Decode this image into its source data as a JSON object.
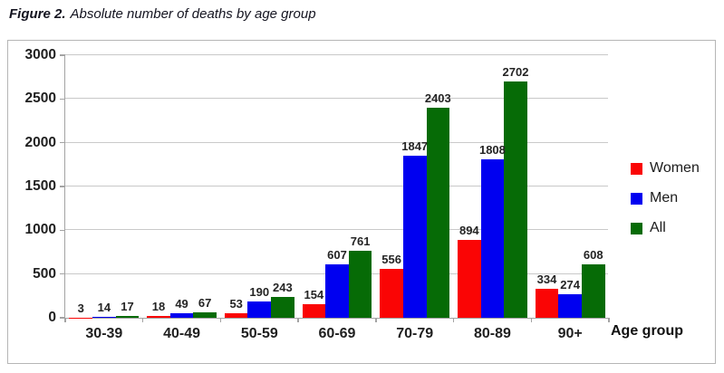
{
  "title": {
    "prefix": "Figure 2.",
    "rest": "Absolute number of deaths by age group"
  },
  "chart_data": {
    "type": "bar",
    "title": "Figure 2. Absolute number of deaths by age group",
    "categories": [
      "30-39",
      "40-49",
      "50-59",
      "60-69",
      "70-79",
      "80-89",
      "90+"
    ],
    "series": [
      {
        "name": "Women",
        "color": "#fa0505",
        "values": [
          3,
          18,
          53,
          154,
          556,
          894,
          334
        ]
      },
      {
        "name": "Men",
        "color": "#0000f0",
        "values": [
          14,
          49,
          190,
          607,
          1847,
          1808,
          274
        ]
      },
      {
        "name": "All",
        "color": "#066b06",
        "values": [
          17,
          67,
          243,
          761,
          2403,
          2702,
          608
        ]
      }
    ],
    "xlabel": "Age group",
    "ylabel": "",
    "ylim": [
      0,
      3000
    ],
    "yticks": [
      0,
      500,
      1000,
      1500,
      2000,
      2500,
      3000
    ],
    "grid": true,
    "data_labels": true,
    "legend_position": "right"
  },
  "colors": {
    "grid": "#c9c9c9",
    "axis": "#a3a3a3",
    "frame_border": "#b6b6b6",
    "label_text": "#242424"
  }
}
